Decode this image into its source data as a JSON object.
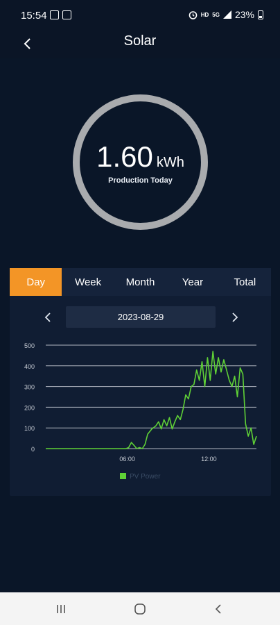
{
  "status_bar": {
    "time": "15:54",
    "hd_label": "HD",
    "signal_label": "5G",
    "battery_text": "23%",
    "icons": [
      "gallery-icon",
      "app-notification-icon",
      "alarm-icon",
      "wifi-icon",
      "signal-icon",
      "battery-icon"
    ]
  },
  "header": {
    "title": "Solar",
    "back_icon": "chevron-left-icon"
  },
  "gauge": {
    "value": "1.60",
    "unit": "kWh",
    "caption": "Production Today",
    "ring_color": "#a9abae"
  },
  "tabs": [
    {
      "label": "Day",
      "active": true
    },
    {
      "label": "Week",
      "active": false
    },
    {
      "label": "Month",
      "active": false
    },
    {
      "label": "Year",
      "active": false
    },
    {
      "label": "Total",
      "active": false
    }
  ],
  "date_selector": {
    "date": "2023-08-29",
    "prev_icon": "chevron-left-icon",
    "next_icon": "chevron-right-icon"
  },
  "chart_data": {
    "type": "line",
    "xlabel": "",
    "ylabel": "",
    "ylim": [
      0,
      500
    ],
    "yticks": [
      0,
      100,
      200,
      300,
      400,
      500
    ],
    "xlim": [
      0,
      15.5
    ],
    "xticks": [
      {
        "value": 6,
        "label": "06:00"
      },
      {
        "value": 12,
        "label": "12:00"
      }
    ],
    "grid": true,
    "legend_position": "bottom-center",
    "series": [
      {
        "name": "PV Power",
        "color": "#5fd136",
        "x": [
          0,
          5.9,
          6.1,
          6.3,
          6.5,
          6.7,
          6.9,
          7.1,
          7.3,
          7.5,
          7.8,
          8.1,
          8.3,
          8.5,
          8.7,
          8.9,
          9.1,
          9.3,
          9.5,
          9.7,
          9.9,
          10.1,
          10.3,
          10.5,
          10.7,
          10.9,
          11.1,
          11.3,
          11.5,
          11.7,
          11.9,
          12.1,
          12.3,
          12.5,
          12.7,
          12.9,
          13.1,
          13.3,
          13.5,
          13.7,
          13.9,
          14.1,
          14.3,
          14.5,
          14.7,
          14.9,
          15.1,
          15.3,
          15.5
        ],
        "values": [
          0,
          0,
          5,
          30,
          15,
          0,
          5,
          0,
          20,
          70,
          95,
          110,
          130,
          95,
          140,
          110,
          150,
          95,
          130,
          160,
          140,
          190,
          260,
          240,
          300,
          310,
          380,
          330,
          420,
          300,
          440,
          330,
          470,
          360,
          440,
          370,
          430,
          380,
          330,
          300,
          350,
          250,
          390,
          360,
          120,
          60,
          100,
          20,
          60
        ]
      }
    ]
  },
  "nav_bar": {
    "icons": [
      "recent-apps-icon",
      "home-icon",
      "back-icon"
    ]
  }
}
